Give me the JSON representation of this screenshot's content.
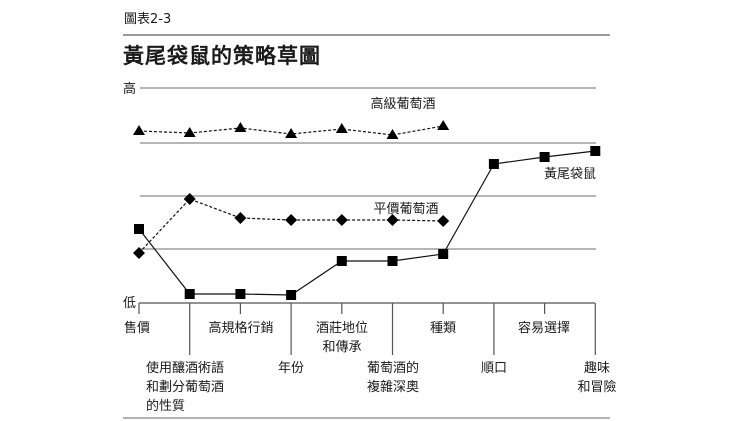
{
  "figure_label": "圖表2-3",
  "title": "黃尾袋鼠的策略草圖",
  "chart_data": {
    "type": "line",
    "title": "黃尾袋鼠的策略草圖",
    "ylabel_high": "高",
    "ylabel_low": "低",
    "ylim": [
      0,
      4
    ],
    "grid": true,
    "categories": [
      "售價",
      "使用釀酒術語和劃分葡萄酒的性質",
      "高規格行銷",
      "年份",
      "酒莊地位和傳承",
      "葡萄酒的複雜深奧",
      "種類",
      "順口",
      "容易選擇",
      "趣味和冒險"
    ],
    "series": [
      {
        "name": "高級葡萄酒",
        "marker": "triangle",
        "style": "dashed",
        "values": [
          3.3,
          3.27,
          3.34,
          3.26,
          3.34,
          3.24,
          3.36,
          null,
          null,
          null
        ]
      },
      {
        "name": "平價葡萄酒",
        "marker": "diamond",
        "style": "dashed",
        "values": [
          0.95,
          1.98,
          1.68,
          1.64,
          1.64,
          1.64,
          1.64,
          null,
          null,
          null
        ]
      },
      {
        "name": "黃尾袋鼠",
        "marker": "square",
        "style": "solid",
        "values": [
          1.5,
          0.12,
          0.12,
          0.1,
          0.83,
          0.83,
          0.95,
          2.65,
          2.77,
          2.87
        ]
      }
    ]
  }
}
